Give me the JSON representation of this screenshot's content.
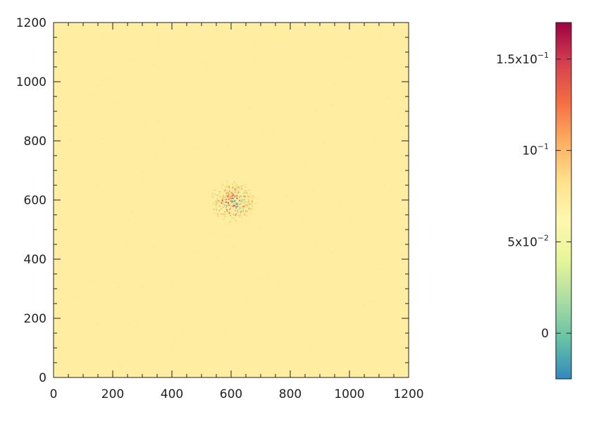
{
  "chart_data": {
    "type": "heatmap",
    "title": "",
    "xlabel": "",
    "ylabel": "",
    "xlim": [
      0,
      1200
    ],
    "ylim": [
      0,
      1200
    ],
    "xticks": [
      0,
      200,
      400,
      600,
      800,
      1000,
      1200
    ],
    "yticks": [
      0,
      200,
      400,
      600,
      800,
      1000,
      1200
    ],
    "xtick_labels": [
      "0",
      "200",
      "400",
      "600",
      "800",
      "1000",
      "1200"
    ],
    "ytick_labels": [
      "0",
      "200",
      "400",
      "600",
      "800",
      "1000",
      "1200"
    ],
    "background_value": 0.07,
    "hotspot": {
      "x_range": [
        530,
        680
      ],
      "y_range": [
        530,
        660
      ],
      "value_range": [
        -0.02,
        0.17
      ]
    },
    "colorbar": {
      "vmin": -0.025,
      "vmax": 0.17,
      "colormap": "Spectral_r",
      "colors": [
        "#3288bd",
        "#66c2a5",
        "#abdda4",
        "#e6f598",
        "#fff7b0",
        "#fee08b",
        "#fdae61",
        "#f46d43",
        "#d53e4f",
        "#9e0142"
      ],
      "ticks": [
        {
          "value": 0,
          "base": "0",
          "exp": ""
        },
        {
          "value": 0.05,
          "base": "5x10",
          "exp": "−2"
        },
        {
          "value": 0.1,
          "base": "10",
          "exp": "−1"
        },
        {
          "value": 0.15,
          "base": "1.5x10",
          "exp": "−1"
        }
      ]
    }
  }
}
